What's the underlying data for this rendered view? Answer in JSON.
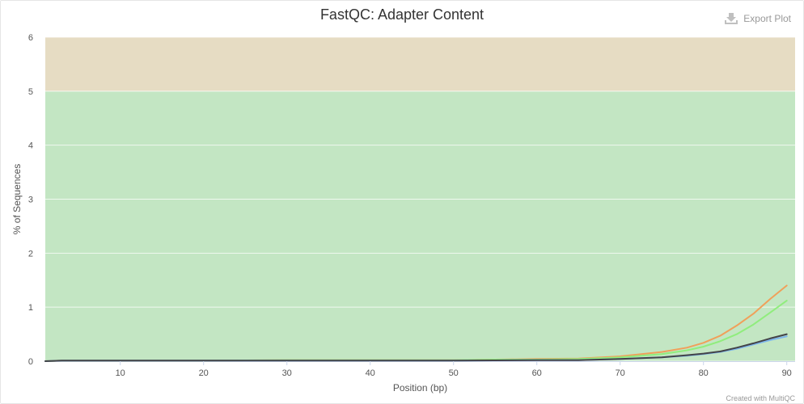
{
  "export": {
    "label": "Export Plot",
    "icon": "download-icon"
  },
  "credit": "Created with MultiQC",
  "chart_data": {
    "type": "line",
    "title": "FastQC: Adapter Content",
    "xlabel": "Position (bp)",
    "ylabel": "% of Sequences",
    "xlim": [
      1,
      91
    ],
    "ylim": [
      0,
      6
    ],
    "x_ticks": [
      10,
      20,
      30,
      40,
      50,
      60,
      70,
      80,
      90
    ],
    "y_ticks": [
      0,
      1,
      2,
      3,
      4,
      5,
      6
    ],
    "grid": true,
    "bands": [
      {
        "from": 0,
        "to": 5,
        "color": "#c3e6c3"
      },
      {
        "from": 5,
        "to": 6,
        "color": "#e6dcc3"
      }
    ],
    "series": [
      {
        "color": "#f0a05a",
        "x": [
          1,
          3,
          10,
          20,
          30,
          40,
          50,
          55,
          60,
          65,
          70,
          75,
          78,
          80,
          82,
          84,
          86,
          88,
          90
        ],
        "values": [
          0,
          0.01,
          0.01,
          0.01,
          0.02,
          0.02,
          0.02,
          0.03,
          0.04,
          0.05,
          0.09,
          0.17,
          0.25,
          0.34,
          0.47,
          0.66,
          0.88,
          1.15,
          1.4
        ]
      },
      {
        "color": "#90ed7d",
        "x": [
          1,
          3,
          10,
          20,
          30,
          40,
          50,
          55,
          60,
          65,
          70,
          75,
          78,
          80,
          82,
          84,
          86,
          88,
          90
        ],
        "values": [
          0,
          0.01,
          0.01,
          0.01,
          0.02,
          0.02,
          0.02,
          0.03,
          0.03,
          0.04,
          0.07,
          0.13,
          0.2,
          0.27,
          0.37,
          0.5,
          0.68,
          0.9,
          1.12
        ]
      },
      {
        "color": "#7cb5ec",
        "x": [
          1,
          3,
          10,
          20,
          30,
          40,
          50,
          60,
          65,
          70,
          75,
          78,
          80,
          82,
          84,
          86,
          88,
          90
        ],
        "values": [
          0,
          0.01,
          0.01,
          0.01,
          0.01,
          0.01,
          0.01,
          0.02,
          0.02,
          0.04,
          0.07,
          0.1,
          0.13,
          0.17,
          0.23,
          0.31,
          0.39,
          0.46
        ]
      },
      {
        "color": "#434348",
        "x": [
          1,
          3,
          10,
          20,
          30,
          40,
          50,
          60,
          65,
          70,
          75,
          78,
          80,
          82,
          84,
          86,
          88,
          90
        ],
        "values": [
          0,
          0.01,
          0.01,
          0.01,
          0.01,
          0.01,
          0.01,
          0.02,
          0.02,
          0.04,
          0.07,
          0.11,
          0.14,
          0.18,
          0.25,
          0.33,
          0.42,
          0.5
        ]
      }
    ]
  }
}
